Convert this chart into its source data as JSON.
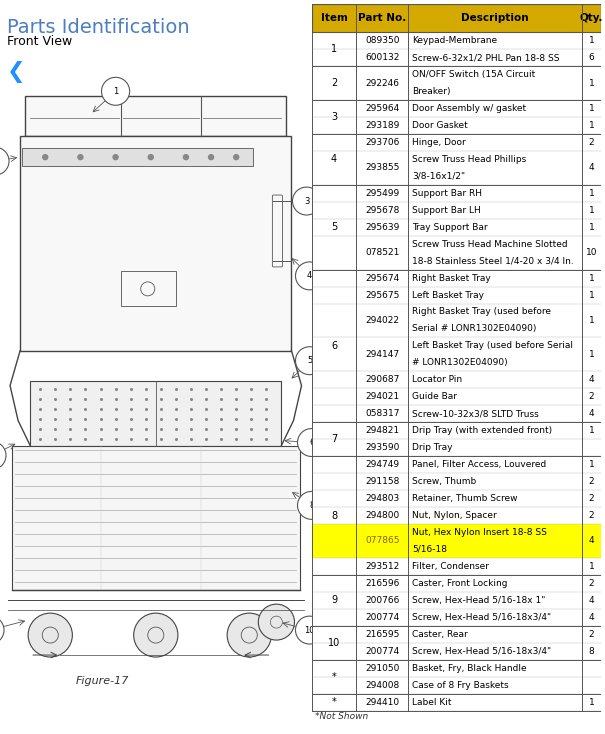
{
  "title": "Parts Identification",
  "subtitle": "Front View",
  "figure_label": "Figure-17",
  "footnote": "*Not Shown",
  "table_header": [
    "Item",
    "Part No.",
    "Description",
    "Qty."
  ],
  "col_header_bg": "#d4aa00",
  "col_header_text": "#000000",
  "highlight_row_color": "#ffff00",
  "highlight_part_no": "077865",
  "table_rows": [
    {
      "item": "1",
      "parts": [
        [
          "089350",
          "Keypad-Membrane",
          "1"
        ],
        [
          "600132",
          "Screw-6-32x1/2 PHL Pan 18-8 SS",
          "6"
        ]
      ]
    },
    {
      "item": "2",
      "parts": [
        [
          "292246",
          "ON/OFF Switch (15A Circuit\nBreaker)",
          "1"
        ]
      ]
    },
    {
      "item": "3",
      "parts": [
        [
          "295964",
          "Door Assembly w/ gasket",
          "1"
        ],
        [
          "293189",
          "Door Gasket",
          "1"
        ]
      ]
    },
    {
      "item": "4",
      "parts": [
        [
          "293706",
          "Hinge, Door",
          "2"
        ],
        [
          "293855",
          "Screw Truss Head Phillips\n3/8-16x1/2\"",
          "4"
        ]
      ]
    },
    {
      "item": "5",
      "parts": [
        [
          "295499",
          "Support Bar RH",
          "1"
        ],
        [
          "295678",
          "Support Bar LH",
          "1"
        ],
        [
          "295639",
          "Tray Support Bar",
          "1"
        ],
        [
          "078521",
          "Screw Truss Head Machine Slotted\n18-8 Stainless Steel 1/4-20 x 3/4 In.",
          "10"
        ]
      ]
    },
    {
      "item": "6",
      "parts": [
        [
          "295674",
          "Right Basket Tray",
          "1"
        ],
        [
          "295675",
          "Left Basket Tray",
          "1"
        ],
        [
          "294022",
          "Right Basket Tray (used before\nSerial # LONR1302E04090)",
          "1"
        ],
        [
          "294147",
          "Left Basket Tray (used before Serial\n# LONR1302E04090)",
          "1"
        ],
        [
          "290687",
          "Locator Pin",
          "4"
        ],
        [
          "294021",
          "Guide Bar",
          "2"
        ],
        [
          "058317",
          "Screw-10-32x3/8 SLTD Truss",
          "4"
        ]
      ]
    },
    {
      "item": "7",
      "parts": [
        [
          "294821",
          "Drip Tray (with extended front)",
          "1"
        ],
        [
          "293590",
          "Drip Tray",
          ""
        ]
      ]
    },
    {
      "item": "8",
      "parts": [
        [
          "294749",
          "Panel, Filter Access, Louvered",
          "1"
        ],
        [
          "291158",
          "Screw, Thumb",
          "2"
        ],
        [
          "294803",
          "Retainer, Thumb Screw",
          "2"
        ],
        [
          "294800",
          "Nut, Nylon, Spacer",
          "2"
        ],
        [
          "077865",
          "Nut, Hex Nylon Insert 18-8 SS\n5/16-18",
          "4"
        ],
        [
          "293512",
          "Filter, Condenser",
          "1"
        ]
      ]
    },
    {
      "item": "9",
      "parts": [
        [
          "216596",
          "Caster, Front Locking",
          "2"
        ],
        [
          "200766",
          "Screw, Hex-Head 5/16-18x 1\"",
          "4"
        ],
        [
          "200774",
          "Screw, Hex-Head 5/16-18x3/4\"",
          "4"
        ]
      ]
    },
    {
      "item": "10",
      "parts": [
        [
          "216595",
          "Caster, Rear",
          "2"
        ],
        [
          "200774",
          "Screw, Hex-Head 5/16-18x3/4\"",
          "8"
        ]
      ]
    },
    {
      "item": "*",
      "parts": [
        [
          "291050",
          "Basket, Fry, Black Handle",
          ""
        ],
        [
          "294008",
          "Case of 8 Fry Baskets",
          ""
        ]
      ]
    },
    {
      "item": "*",
      "parts": [
        [
          "294410",
          "Label Kit",
          "1"
        ]
      ]
    }
  ],
  "bg_color": "#ffffff",
  "title_color": "#4a7fc1",
  "title_fontsize": 14,
  "subtitle_fontsize": 9,
  "table_fontsize": 6.5,
  "header_fontsize": 7.5,
  "arrow_color": "#1e90ff",
  "border_color": "#888888",
  "dark_border": "#555555"
}
